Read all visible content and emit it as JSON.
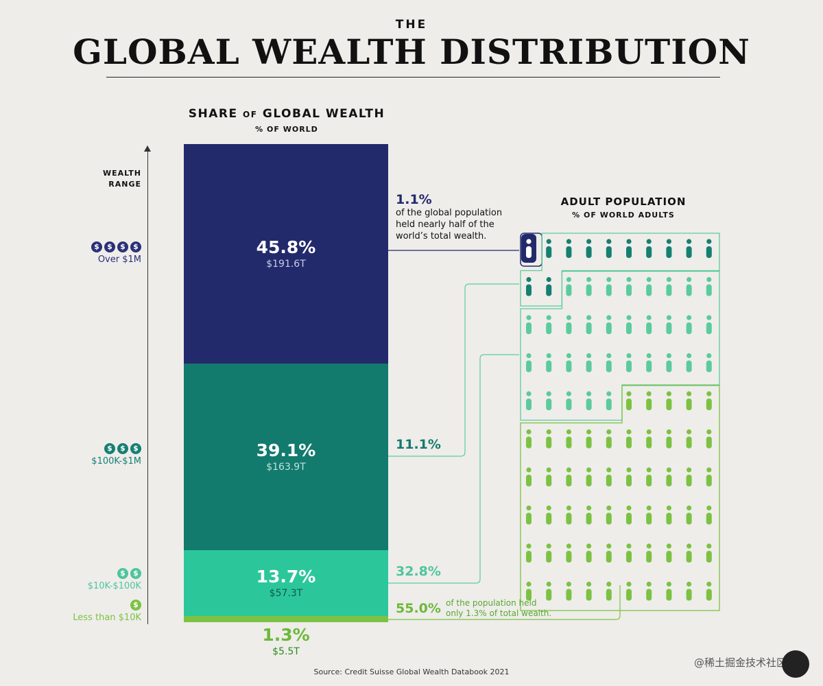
{
  "header": {
    "title_small": "THE",
    "title_main": "GLOBAL WEALTH DISTRIBUTION"
  },
  "share_chart": {
    "title_a": "SHARE",
    "title_of": "OF",
    "title_b": "GLOBAL WEALTH",
    "subtitle": "% OF WORLD"
  },
  "axis": {
    "label_line1": "WEALTH",
    "label_line2": "RANGE"
  },
  "tiers": [
    {
      "coins": "$",
      "coin_count": 4,
      "label": "Over $1M",
      "color": "#2a3077"
    },
    {
      "coins": "$",
      "coin_count": 3,
      "label": "$100K-$1M",
      "color": "#157f72"
    },
    {
      "coins": "$",
      "coin_count": 2,
      "label": "$10K-$100K",
      "color": "#4fc49d"
    },
    {
      "coins": "$",
      "coin_count": 1,
      "label": "Less than $10K",
      "color": "#7cc242"
    }
  ],
  "population_chart": {
    "title": "ADULT POPULATION",
    "subtitle": "% OF WORLD ADULTS"
  },
  "annotations": {
    "top_pct": "1.1%",
    "top_text_1": "of the global population",
    "top_text_2": "held nearly half of the",
    "top_text_3": "world’s total wealth.",
    "mid_pct": "11.1%",
    "low_pct": "32.8%",
    "bottom_pct": "55.0%",
    "bottom_text_1": "of the population held",
    "bottom_text_2": "only 1.3% of total wealth."
  },
  "chart_data": {
    "type": "bar",
    "categories": [
      "Over $1M",
      "$100K-$1M",
      "$10K-$100K",
      "Less than $10K"
    ],
    "series": [
      {
        "name": "SHARE OF GLOBAL WEALTH",
        "values": [
          45.8,
          39.1,
          13.7,
          1.3
        ]
      },
      {
        "name": "ADULT POPULATION",
        "values": [
          1.1,
          11.1,
          32.8,
          55.0
        ]
      }
    ],
    "labels": [
      "45.8%",
      "39.1%",
      "13.7%",
      "1.3%"
    ],
    "wealth_values": [
      "$191.6T",
      "$163.9T",
      "$57.3T",
      "$5.5T"
    ],
    "population_labels": [
      "1.1%",
      "11.1%",
      "32.8%",
      "55.0%"
    ],
    "icon_counts": [
      1,
      11,
      33,
      55
    ],
    "colors": [
      "#232a6b",
      "#137a6e",
      "#2bc79b",
      "#7cc242"
    ],
    "icon_colors": [
      "#1f6f70",
      "#157f72",
      "#5ccb9c",
      "#7cc242"
    ],
    "stacked": true
  },
  "source": "Source: Credit Suisse Global Wealth Databook 2021",
  "watermark": "@稀土掘金技术社区"
}
